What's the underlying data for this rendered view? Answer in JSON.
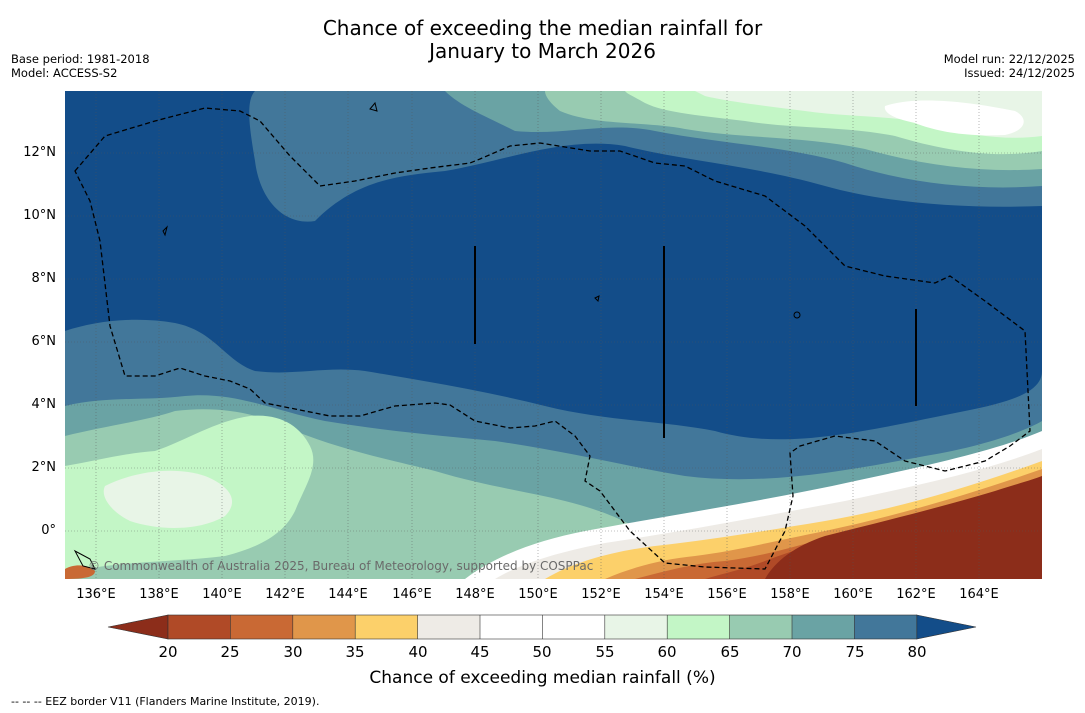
{
  "header": {
    "title_line1": "Chance of exceeding the median rainfall for",
    "title_line2": "January to March 2026",
    "base_period": "Base period: 1981-2018",
    "model": "Model: ACCESS-S2",
    "model_run": "Model run: 22/12/2025",
    "issued": "Issued: 24/12/2025"
  },
  "map": {
    "lat_labels": [
      "12°N",
      "10°N",
      "8°N",
      "6°N",
      "4°N",
      "2°N",
      "0°"
    ],
    "lon_labels": [
      "136°E",
      "138°E",
      "140°E",
      "142°E",
      "144°E",
      "146°E",
      "148°E",
      "150°E",
      "152°E",
      "154°E",
      "156°E",
      "158°E",
      "160°E",
      "162°E",
      "164°E"
    ],
    "copyright": "© Commonwealth of Australia 2025, Bureau of Meteorology, supported by COSPPac"
  },
  "colorbar": {
    "ticks": [
      "20",
      "25",
      "30",
      "35",
      "40",
      "45",
      "50",
      "55",
      "60",
      "65",
      "70",
      "75",
      "80"
    ],
    "colors": [
      "#8c2d1a",
      "#b04a27",
      "#c96934",
      "#e0964a",
      "#fcd06a",
      "#eeebe6",
      "#ffffff",
      "#ffffff",
      "#e8f5e7",
      "#c3f6c6",
      "#98cbb1",
      "#6aa3a4",
      "#42779a",
      "#134d89"
    ],
    "label": "Chance of exceeding median rainfall (%)"
  },
  "footnote": "--  --  -- EEZ border V11 (Flanders Marine Institute, 2019)."
}
